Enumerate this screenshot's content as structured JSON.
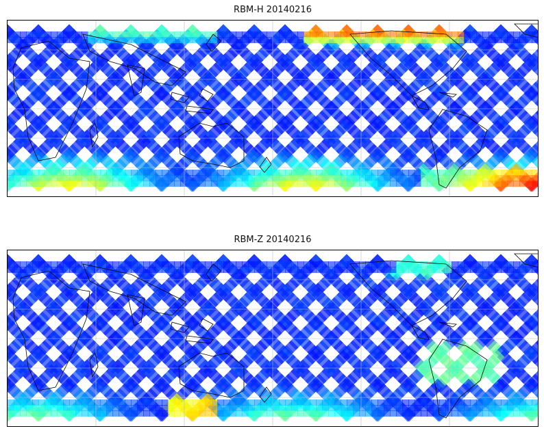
{
  "panels": [
    {
      "title": "RBM-H 20140216"
    },
    {
      "title": "RBM-Z 20140216"
    }
  ],
  "colormap": {
    "name": "jet",
    "alpha": 0.65
  },
  "colors": {
    "swath_low": "#6b6bf7",
    "coast": "#000000",
    "grid": "#bbbbbb"
  }
}
